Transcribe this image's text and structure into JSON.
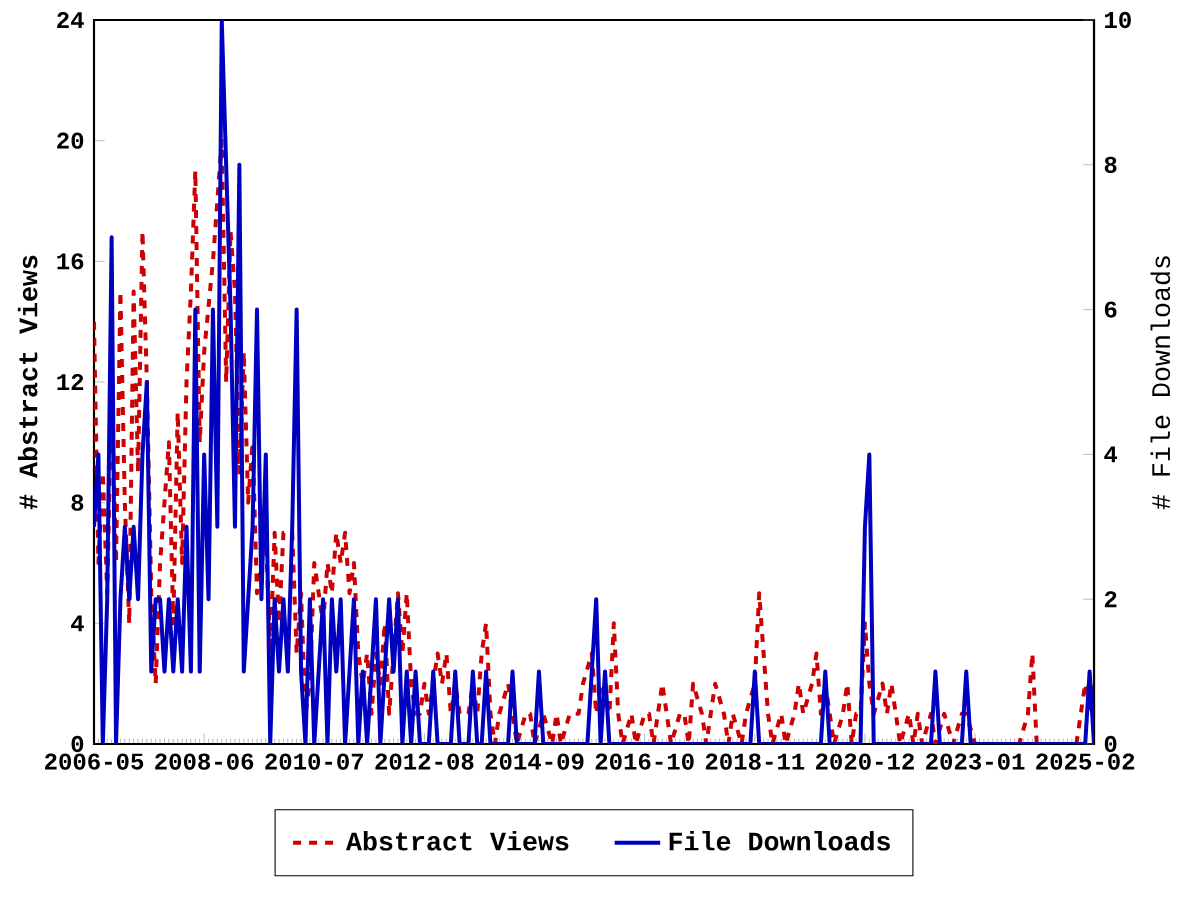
{
  "chart_data": {
    "type": "line",
    "ylabel": "# Abstract Views",
    "y2label": "# File Downloads",
    "xlim": [
      "2006-05",
      "2025-04"
    ],
    "xticks": [
      "2006-05",
      "2008-06",
      "2010-07",
      "2012-08",
      "2014-09",
      "2016-10",
      "2018-11",
      "2020-12",
      "2023-01",
      "2025-02"
    ],
    "ylim": [
      0,
      24
    ],
    "yticks": [
      0,
      4,
      8,
      12,
      16,
      20,
      24
    ],
    "y2lim": [
      0,
      10
    ],
    "y2ticks": [
      0,
      2,
      4,
      6,
      8,
      10
    ],
    "legend": "bottom",
    "grid": false,
    "series": [
      {
        "name": "Abstract Views",
        "color": "#cc0000",
        "line_style": "dashed",
        "x": [
          "2006-05",
          "2006-06",
          "2006-07",
          "2006-08",
          "2006-09",
          "2006-10",
          "2006-11",
          "2006-12",
          "2007-01",
          "2007-02",
          "2007-03",
          "2007-04",
          "2007-05",
          "2007-06",
          "2007-07",
          "2007-08",
          "2007-10",
          "2007-11",
          "2007-12",
          "2008-01",
          "2008-02",
          "2008-03",
          "2008-04",
          "2008-05",
          "2008-06",
          "2008-08",
          "2008-10",
          "2008-11",
          "2008-12",
          "2009-01",
          "2009-02",
          "2009-03",
          "2009-04",
          "2009-05",
          "2009-06",
          "2009-08",
          "2009-09",
          "2009-10",
          "2009-11",
          "2009-12",
          "2010-02",
          "2010-03",
          "2010-04",
          "2010-05",
          "2010-06",
          "2010-07",
          "2010-09",
          "2010-10",
          "2010-11",
          "2010-12",
          "2011-01",
          "2011-02",
          "2011-03",
          "2011-04",
          "2011-05",
          "2011-06",
          "2011-07",
          "2011-08",
          "2011-09",
          "2011-10",
          "2011-11",
          "2011-12",
          "2012-02",
          "2012-03",
          "2012-04",
          "2012-05",
          "2012-06",
          "2012-07",
          "2012-08",
          "2012-09",
          "2012-11",
          "2012-12",
          "2013-01",
          "2013-02",
          "2013-03",
          "2013-04",
          "2013-06",
          "2013-07",
          "2013-08",
          "2013-09",
          "2013-10",
          "2013-11",
          "2013-12",
          "2014-01",
          "2014-03",
          "2014-04",
          "2014-05",
          "2014-07",
          "2014-08",
          "2014-09",
          "2014-11",
          "2015-01",
          "2015-02",
          "2015-03",
          "2015-05",
          "2015-07",
          "2015-08",
          "2015-10",
          "2015-11",
          "2015-12",
          "2016-02",
          "2016-03",
          "2016-04",
          "2016-05",
          "2016-07",
          "2016-08",
          "2016-10",
          "2016-11",
          "2016-12",
          "2017-02",
          "2017-03",
          "2017-04",
          "2017-06",
          "2017-07",
          "2017-08",
          "2017-09",
          "2017-11",
          "2017-12",
          "2018-01",
          "2018-02",
          "2018-04",
          "2018-05",
          "2018-06",
          "2018-08",
          "2018-09",
          "2018-11",
          "2018-12",
          "2019-01",
          "2019-02",
          "2019-03",
          "2019-05",
          "2019-06",
          "2019-08",
          "2019-09",
          "2019-10",
          "2019-12",
          "2020-01",
          "2020-02",
          "2020-03",
          "2020-04",
          "2020-05",
          "2020-07",
          "2020-08",
          "2020-09",
          "2020-10",
          "2020-11",
          "2020-12",
          "2021-01",
          "2021-02",
          "2021-04",
          "2021-05",
          "2021-06",
          "2021-07",
          "2021-08",
          "2021-10",
          "2021-11",
          "2021-12",
          "2022-01",
          "2022-03",
          "2022-04",
          "2022-06",
          "2022-08",
          "2022-10",
          "2022-11",
          "2023-01",
          "2023-02",
          "2023-05",
          "2023-07",
          "2023-09",
          "2023-11",
          "2024-01",
          "2024-02",
          "2024-03",
          "2024-05",
          "2024-07",
          "2024-09",
          "2024-12",
          "2025-01",
          "2025-02",
          "2025-03",
          "2025-04"
        ],
        "values": [
          14,
          6,
          9,
          5,
          12,
          6,
          15,
          8,
          4,
          15,
          9,
          17,
          12,
          5,
          2,
          6,
          10,
          4,
          11,
          6,
          12,
          15,
          19,
          10,
          13,
          16,
          20,
          12,
          17,
          15,
          9,
          13,
          8,
          10,
          5,
          7,
          3,
          7,
          4,
          7,
          7,
          3,
          5,
          1,
          2,
          6,
          4,
          6,
          5,
          7,
          6,
          7,
          5,
          6,
          3,
          2,
          3,
          1,
          3,
          2,
          4,
          1,
          5,
          3,
          5,
          2,
          1,
          1,
          2,
          1,
          3,
          2,
          3,
          1,
          2,
          1,
          1,
          2,
          1,
          3,
          4,
          1,
          0,
          1,
          2,
          1,
          0,
          1,
          1,
          0,
          1,
          0,
          1,
          0,
          1,
          1,
          2,
          3,
          1,
          2,
          1,
          4,
          1,
          0,
          1,
          0,
          1,
          1,
          0,
          2,
          1,
          0,
          1,
          1,
          0,
          2,
          1,
          0,
          1,
          2,
          1,
          0,
          1,
          0,
          1,
          2,
          5,
          3,
          1,
          0,
          1,
          0,
          1,
          2,
          1,
          2,
          3,
          1,
          2,
          1,
          0,
          1,
          2,
          0,
          1,
          1,
          4,
          2,
          1,
          2,
          1,
          2,
          1,
          0,
          1,
          0,
          1,
          0,
          1,
          0,
          1,
          0,
          1,
          1,
          0,
          0,
          0,
          0,
          0,
          0,
          1,
          3,
          0,
          0,
          0,
          0,
          0,
          1,
          2,
          1,
          2
        ]
      },
      {
        "name": "File Downloads",
        "color": "#0000c0",
        "line_style": "solid",
        "axis": "y2",
        "x": [
          "2006-05",
          "2006-06",
          "2006-07",
          "2006-08",
          "2006-09",
          "2006-10",
          "2006-11",
          "2006-12",
          "2007-01",
          "2007-02",
          "2007-03",
          "2007-04",
          "2007-05",
          "2007-06",
          "2007-07",
          "2007-08",
          "2007-09",
          "2007-10",
          "2007-11",
          "2007-12",
          "2008-01",
          "2008-02",
          "2008-03",
          "2008-04",
          "2008-05",
          "2008-06",
          "2008-07",
          "2008-08",
          "2008-09",
          "2008-10",
          "2008-11",
          "2008-12",
          "2009-01",
          "2009-02",
          "2009-03",
          "2009-04",
          "2009-05",
          "2009-06",
          "2009-07",
          "2009-08",
          "2009-09",
          "2009-10",
          "2009-11",
          "2009-12",
          "2010-01",
          "2010-02",
          "2010-03",
          "2010-04",
          "2010-05",
          "2010-06",
          "2010-07",
          "2010-08",
          "2010-09",
          "2010-10",
          "2010-11",
          "2010-12",
          "2011-01",
          "2011-02",
          "2011-03",
          "2011-04",
          "2011-05",
          "2011-06",
          "2011-07",
          "2011-08",
          "2011-09",
          "2011-10",
          "2011-11",
          "2011-12",
          "2012-01",
          "2012-02",
          "2012-03",
          "2012-04",
          "2012-05",
          "2012-06",
          "2012-07",
          "2012-09",
          "2012-10",
          "2012-11",
          "2013-02",
          "2013-03",
          "2013-04",
          "2013-06",
          "2013-07",
          "2013-08",
          "2013-09",
          "2013-10",
          "2013-11",
          "2014-03",
          "2014-04",
          "2014-05",
          "2014-09",
          "2014-10",
          "2014-11",
          "2015-09",
          "2015-10",
          "2015-11",
          "2015-12",
          "2016-01",
          "2016-02",
          "2018-10",
          "2018-11",
          "2018-12",
          "2020-02",
          "2020-03",
          "2020-04",
          "2020-11",
          "2020-12",
          "2021-01",
          "2021-02",
          "2022-03",
          "2022-04",
          "2022-05",
          "2022-10",
          "2022-11",
          "2022-12",
          "2025-02",
          "2025-03",
          "2025-04"
        ],
        "values": [
          3,
          4,
          0,
          2,
          7,
          0,
          2,
          3,
          2,
          3,
          2,
          4,
          5,
          1,
          2,
          2,
          1,
          2,
          1,
          2,
          1,
          3,
          1,
          6,
          1,
          4,
          2,
          6,
          3,
          10,
          8,
          6,
          3,
          8,
          1,
          2,
          3,
          6,
          2,
          4,
          0,
          2,
          1,
          2,
          1,
          3,
          6,
          1,
          0,
          2,
          0,
          1,
          2,
          0,
          2,
          1,
          2,
          0,
          1,
          2,
          0,
          1,
          0,
          1,
          2,
          0,
          1,
          2,
          1,
          2,
          0,
          1,
          0,
          1,
          0,
          0,
          1,
          0,
          0,
          1,
          0,
          0,
          1,
          0,
          0,
          1,
          0,
          0,
          1,
          0,
          0,
          1,
          0,
          0,
          1,
          2,
          0,
          1,
          0,
          0,
          1,
          0,
          0,
          1,
          0,
          0,
          3,
          4,
          0,
          0,
          1,
          0,
          0,
          1,
          0,
          0,
          1,
          0
        ]
      }
    ]
  }
}
